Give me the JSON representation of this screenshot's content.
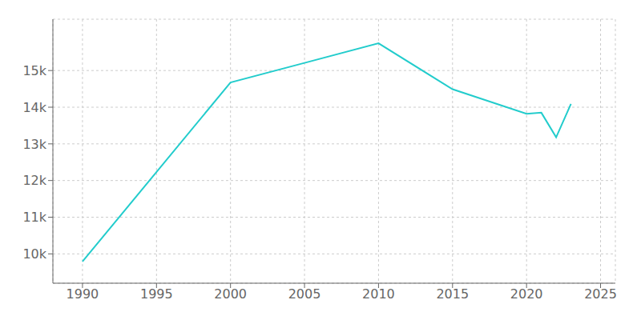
{
  "chart_data": {
    "type": "line",
    "x": [
      1990,
      2000,
      2005,
      2010,
      2015,
      2020,
      2021,
      2022,
      2023
    ],
    "values": [
      9791,
      14674,
      15208,
      15743,
      14490,
      13820,
      13850,
      13180,
      14090
    ],
    "color": "#22cccc",
    "xlim": [
      1988,
      2026
    ],
    "ylim": [
      9200,
      16400
    ],
    "xticks": [
      1990,
      1995,
      2000,
      2005,
      2010,
      2015,
      2020,
      2025
    ],
    "yticks": [
      {
        "value": 10000,
        "label": "10k"
      },
      {
        "value": 11000,
        "label": "11k"
      },
      {
        "value": 12000,
        "label": "12k"
      },
      {
        "value": 13000,
        "label": "13k"
      },
      {
        "value": 14000,
        "label": "14k"
      },
      {
        "value": 15000,
        "label": "15k"
      }
    ],
    "grid": true
  }
}
